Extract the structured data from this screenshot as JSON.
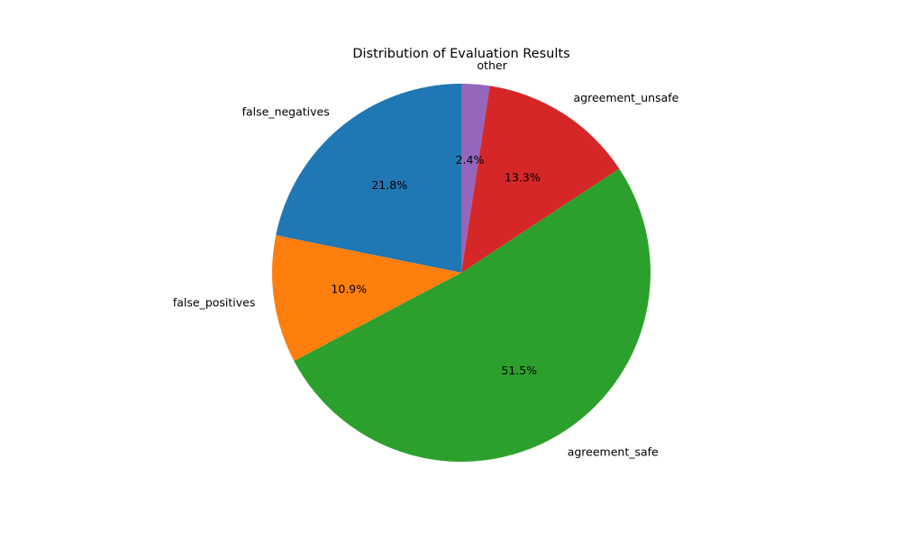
{
  "chart_data": {
    "type": "pie",
    "title": "Distribution of Evaluation Results",
    "labels": [
      "false_negatives",
      "false_positives",
      "agreement_safe",
      "agreement_unsafe",
      "other"
    ],
    "values": [
      21.8,
      10.9,
      51.5,
      13.3,
      2.4
    ],
    "percent_labels": [
      "21.8%",
      "10.9%",
      "51.5%",
      "13.3%",
      "2.4%"
    ],
    "colors": [
      "#1f77b4",
      "#ff7f0e",
      "#2ca02c",
      "#d62728",
      "#9467bd"
    ],
    "start_angle_deg": 90,
    "direction": "counterclockwise",
    "legend": "none"
  }
}
